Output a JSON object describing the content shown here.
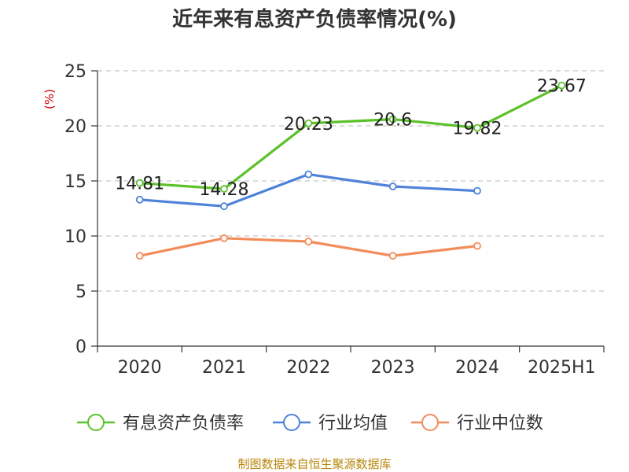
{
  "chart_data": {
    "type": "line",
    "title": "近年来有息资产负债率情况(%)",
    "ylabel": "(%)",
    "xlabel": "",
    "categories": [
      "2020",
      "2021",
      "2022",
      "2023",
      "2024",
      "2025H1"
    ],
    "ylim": [
      0,
      25
    ],
    "yticks": [
      0,
      5,
      10,
      15,
      20,
      25
    ],
    "grid": true,
    "legend_position": "bottom",
    "series": [
      {
        "name": "有息资产负债率",
        "color": "#5cc12a",
        "values": [
          14.81,
          14.28,
          20.23,
          20.6,
          19.82,
          23.67
        ],
        "show_labels": true
      },
      {
        "name": "行业均值",
        "color": "#4f82d9",
        "values": [
          13.3,
          12.7,
          15.6,
          14.5,
          14.1,
          null
        ],
        "show_labels": false
      },
      {
        "name": "行业中位数",
        "color": "#f28c5a",
        "values": [
          8.2,
          9.8,
          9.5,
          8.2,
          9.1,
          null
        ],
        "show_labels": false
      }
    ]
  },
  "source": "制图数据来自恒生聚源数据库"
}
